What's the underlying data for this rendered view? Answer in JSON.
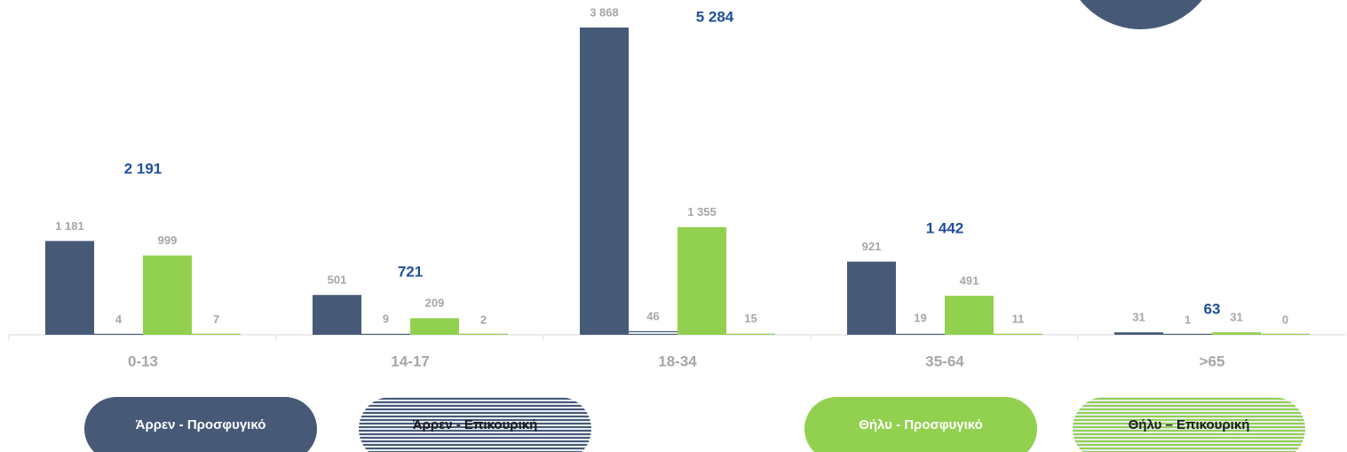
{
  "chart_data": {
    "type": "bar",
    "categories": [
      "0-13",
      "14-17",
      "18-34",
      "35-64",
      ">65"
    ],
    "series": [
      {
        "name": "Άρρεν - Προσφυγικό",
        "color": "#465a78",
        "hatch": false,
        "values": [
          1181,
          501,
          3868,
          921,
          31
        ],
        "value_labels": [
          "1 181",
          "501",
          "3 868",
          "921",
          "31"
        ]
      },
      {
        "name": "Άρρεν - Επικουρική",
        "color": "#465a78",
        "hatch": true,
        "values": [
          4,
          9,
          46,
          19,
          1
        ],
        "value_labels": [
          "4",
          "9",
          "46",
          "19",
          "1"
        ]
      },
      {
        "name": "Θήλυ - Προσφυγικό",
        "color": "#92d050",
        "hatch": false,
        "values": [
          999,
          209,
          1355,
          491,
          31
        ],
        "value_labels": [
          "999",
          "209",
          "1 355",
          "491",
          "31"
        ]
      },
      {
        "name": "Θήλυ – Επικουρική",
        "color": "#92d050",
        "hatch": true,
        "values": [
          7,
          2,
          15,
          11,
          0
        ],
        "value_labels": [
          "7",
          "2",
          "15",
          "11",
          "0"
        ]
      }
    ],
    "totals": [
      2191,
      721,
      5284,
      1442,
      63
    ],
    "total_labels": [
      "2 191",
      "721",
      "5 284",
      "1 442",
      "63"
    ]
  }
}
